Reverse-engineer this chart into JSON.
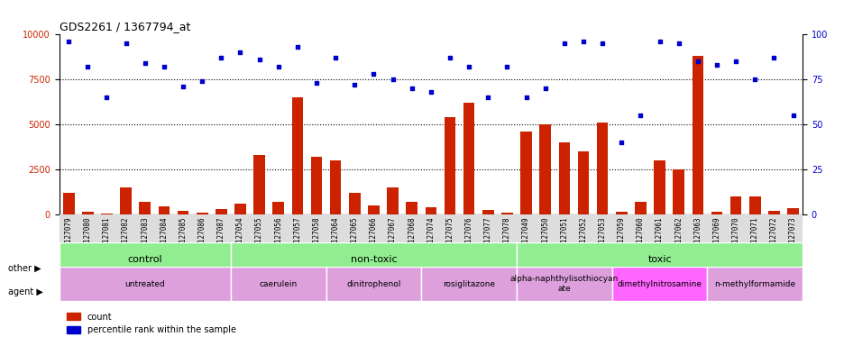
{
  "title": "GDS2261 / 1367794_at",
  "samples": [
    "GSM127079",
    "GSM127080",
    "GSM127081",
    "GSM127082",
    "GSM127083",
    "GSM127084",
    "GSM127085",
    "GSM127086",
    "GSM127087",
    "GSM127054",
    "GSM127055",
    "GSM127056",
    "GSM127057",
    "GSM127058",
    "GSM127064",
    "GSM127065",
    "GSM127066",
    "GSM127067",
    "GSM127068",
    "GSM127074",
    "GSM127075",
    "GSM127076",
    "GSM127077",
    "GSM127078",
    "GSM127049",
    "GSM127050",
    "GSM127051",
    "GSM127052",
    "GSM127053",
    "GSM127059",
    "GSM127060",
    "GSM127061",
    "GSM127062",
    "GSM127063",
    "GSM127069",
    "GSM127070",
    "GSM127071",
    "GSM127072",
    "GSM127073"
  ],
  "counts": [
    1200,
    150,
    50,
    1500,
    700,
    450,
    200,
    100,
    300,
    600,
    3300,
    700,
    6500,
    3200,
    3000,
    1200,
    500,
    1500,
    700,
    400,
    5400,
    6200,
    250,
    100,
    4600,
    5000,
    4000,
    3500,
    5100,
    150,
    700,
    3000,
    2500,
    8800,
    150,
    1000,
    1000,
    200,
    350
  ],
  "percentile": [
    96,
    82,
    65,
    95,
    84,
    82,
    71,
    74,
    87,
    90,
    86,
    82,
    93,
    73,
    87,
    72,
    78,
    75,
    70,
    68,
    87,
    82,
    65,
    82,
    65,
    70,
    95,
    96,
    95,
    40,
    55,
    96,
    95,
    85,
    83,
    85,
    75,
    87,
    55
  ],
  "groups": [
    {
      "label": "control",
      "color": "#90EE90",
      "start": 0,
      "end": 9
    },
    {
      "label": "non-toxic",
      "color": "#90EE90",
      "start": 9,
      "end": 24
    },
    {
      "label": "toxic",
      "color": "#90EE90",
      "start": 24,
      "end": 39
    }
  ],
  "agents": [
    {
      "label": "untreated",
      "color": "#DDA0DD",
      "start": 0,
      "end": 9
    },
    {
      "label": "caerulein",
      "color": "#DDA0DD",
      "start": 9,
      "end": 14
    },
    {
      "label": "dinitrophenol",
      "color": "#DDA0DD",
      "start": 14,
      "end": 19
    },
    {
      "label": "rosiglitazone",
      "color": "#DDA0DD",
      "start": 19,
      "end": 24
    },
    {
      "label": "alpha-naphthylisothiocyan\nate",
      "color": "#DDA0DD",
      "start": 24,
      "end": 29
    },
    {
      "label": "dimethylnitrosamine",
      "color": "#FF80FF",
      "start": 29,
      "end": 34
    },
    {
      "label": "n-methylformamide",
      "color": "#DDA0DD",
      "start": 34,
      "end": 39
    }
  ],
  "ylim_left": [
    0,
    10000
  ],
  "ylim_right": [
    0,
    100
  ],
  "yticks_left": [
    0,
    2500,
    5000,
    7500,
    10000
  ],
  "yticks_right": [
    0,
    25,
    50,
    75,
    100
  ],
  "bar_color": "#CC2200",
  "scatter_color": "#0000CC",
  "background_color": "#FFFFFF",
  "tick_area_color": "#DDDDDD"
}
